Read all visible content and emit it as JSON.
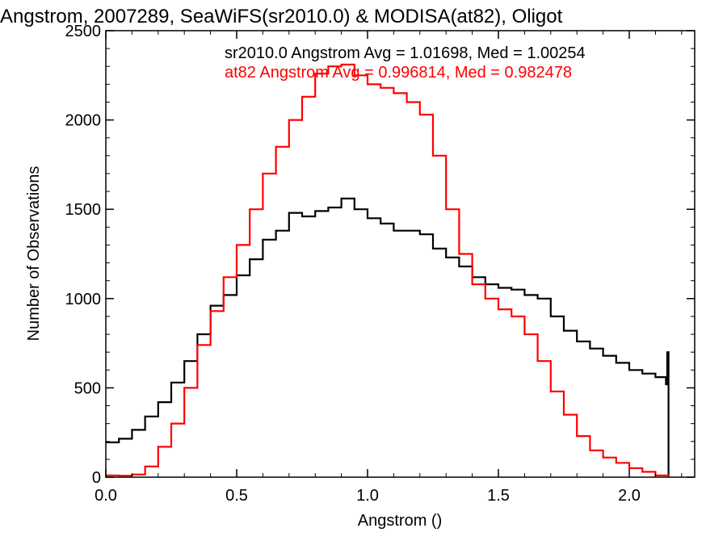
{
  "chart_data": {
    "type": "line",
    "title": "Angstrom, 2007289, SeaWiFS(sr2010.0) & MODISA(at82), Oligot",
    "xlabel": "Angstrom ()",
    "ylabel": "Number of Observations",
    "xlim": [
      0.0,
      2.25
    ],
    "ylim": [
      0,
      2500
    ],
    "xticks": [
      0.0,
      0.5,
      1.0,
      1.5,
      2.0
    ],
    "xtick_labels": [
      "0.0",
      "0.5",
      "1.0",
      "1.5",
      "2.0"
    ],
    "yticks": [
      0,
      500,
      1000,
      1500,
      2000,
      2500
    ],
    "ytick_labels": [
      "0",
      "500",
      "1000",
      "1500",
      "2000",
      "2500"
    ],
    "grid": false,
    "legend_position": "top-right",
    "series": [
      {
        "label": "sr2010.0 Angstrom Avg = 1.01698, Med = 1.00254",
        "color": "#000000",
        "x": [
          0.0,
          0.05,
          0.1,
          0.15,
          0.2,
          0.25,
          0.3,
          0.35,
          0.4,
          0.45,
          0.5,
          0.55,
          0.6,
          0.65,
          0.7,
          0.75,
          0.8,
          0.85,
          0.9,
          0.95,
          1.0,
          1.05,
          1.1,
          1.15,
          1.2,
          1.25,
          1.3,
          1.35,
          1.4,
          1.45,
          1.5,
          1.55,
          1.6,
          1.65,
          1.7,
          1.75,
          1.8,
          1.85,
          1.9,
          1.95,
          2.0,
          2.05,
          2.1,
          2.14,
          2.145,
          2.15
        ],
        "values": [
          195,
          215,
          265,
          340,
          420,
          530,
          650,
          800,
          960,
          1020,
          1130,
          1220,
          1330,
          1380,
          1480,
          1460,
          1490,
          1510,
          1560,
          1500,
          1450,
          1420,
          1380,
          1380,
          1360,
          1280,
          1230,
          1180,
          1120,
          1080,
          1060,
          1050,
          1020,
          1000,
          900,
          820,
          760,
          720,
          680,
          640,
          600,
          580,
          560,
          520,
          700,
          0
        ]
      },
      {
        "label": "at82 Angstrom Avg = 0.996814, Med = 0.982478",
        "color": "#ff0000",
        "x": [
          0.0,
          0.05,
          0.1,
          0.15,
          0.2,
          0.25,
          0.3,
          0.35,
          0.4,
          0.45,
          0.5,
          0.55,
          0.6,
          0.65,
          0.7,
          0.75,
          0.8,
          0.85,
          0.9,
          0.95,
          1.0,
          1.05,
          1.1,
          1.15,
          1.2,
          1.25,
          1.3,
          1.35,
          1.4,
          1.45,
          1.5,
          1.55,
          1.6,
          1.65,
          1.7,
          1.75,
          1.8,
          1.85,
          1.9,
          1.95,
          2.0,
          2.05,
          2.1,
          2.15
        ],
        "values": [
          10,
          8,
          15,
          60,
          170,
          300,
          500,
          740,
          930,
          1120,
          1300,
          1500,
          1700,
          1850,
          2000,
          2130,
          2260,
          2300,
          2310,
          2250,
          2200,
          2180,
          2150,
          2100,
          2030,
          1800,
          1500,
          1250,
          1080,
          1000,
          940,
          900,
          800,
          650,
          480,
          350,
          230,
          150,
          110,
          80,
          50,
          30,
          10,
          0
        ]
      }
    ]
  }
}
